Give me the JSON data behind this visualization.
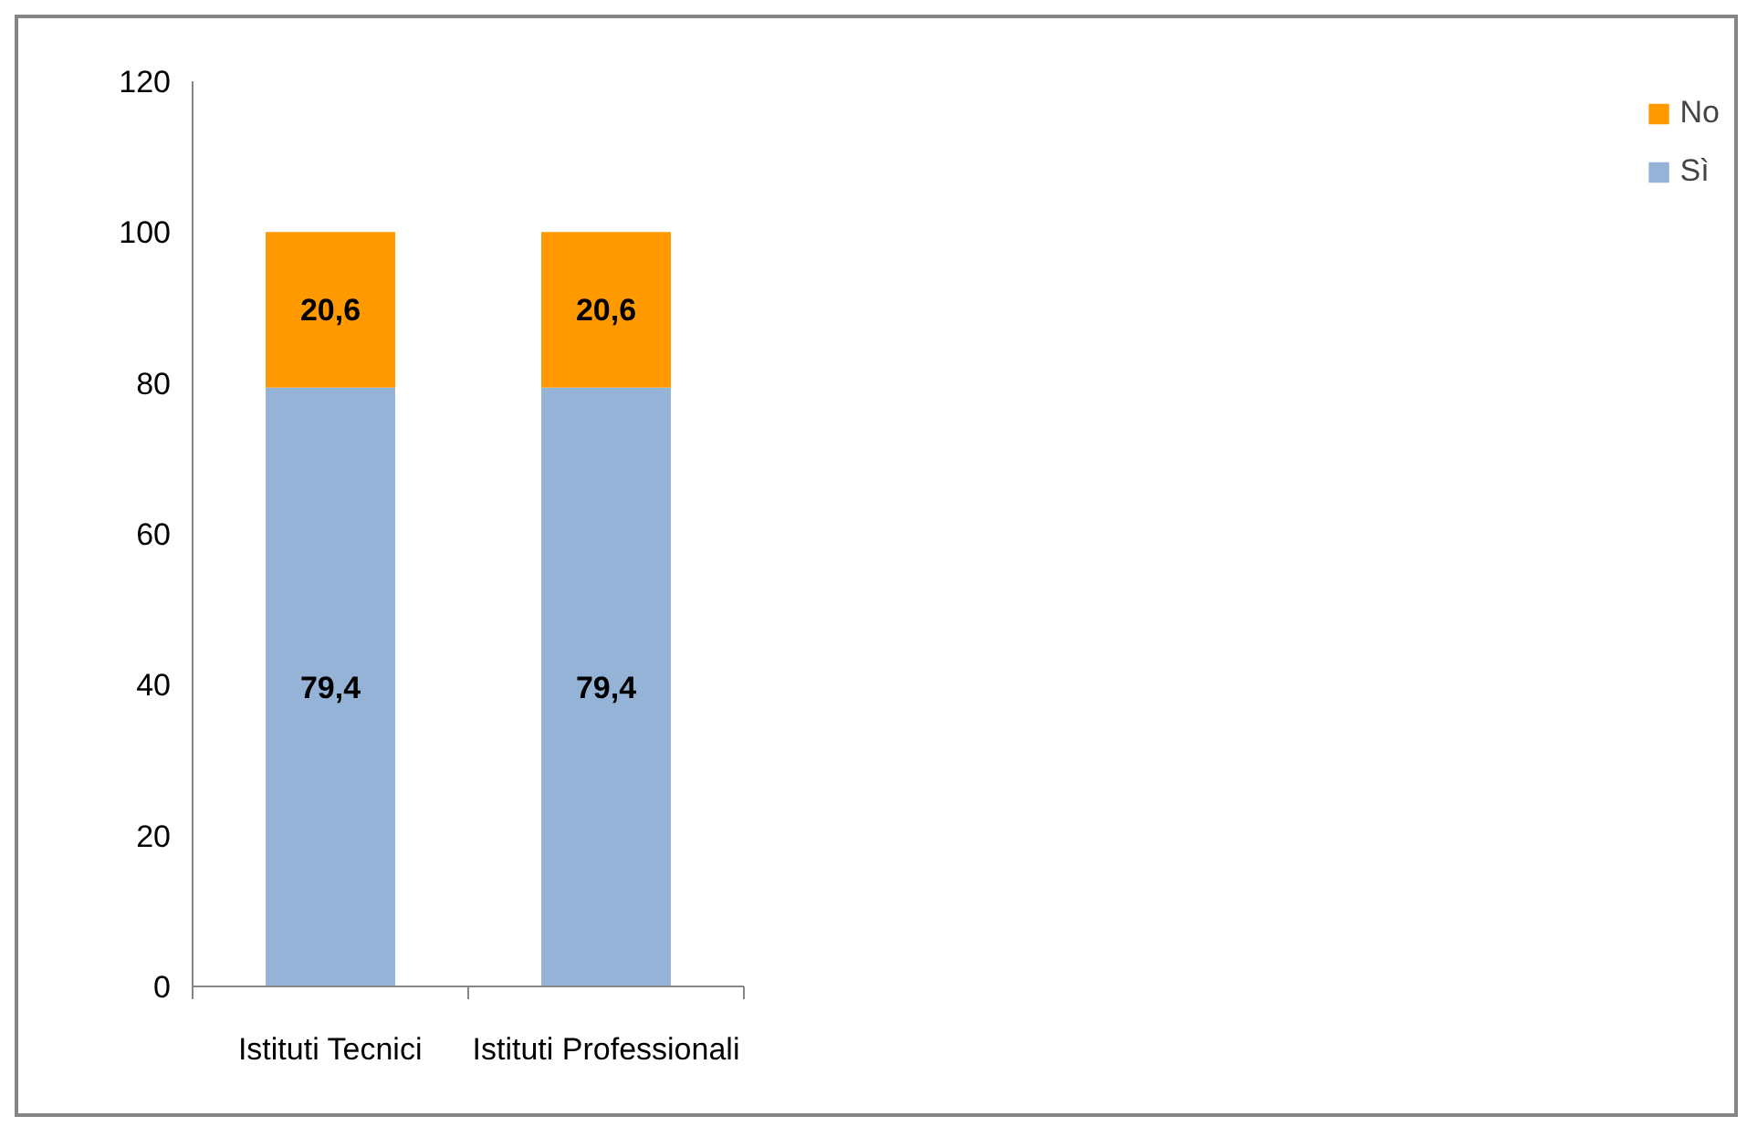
{
  "chart_data": {
    "type": "bar",
    "stacked": true,
    "categories": [
      "Istituti Tecnici",
      "Istituti Professionali"
    ],
    "series": [
      {
        "name": "Sì",
        "color": "#95b3d7",
        "values": [
          79.4,
          79.4
        ],
        "value_labels": [
          "79,4",
          "79,4"
        ]
      },
      {
        "name": "No",
        "color": "#ff9900",
        "values": [
          20.6,
          20.6
        ],
        "value_labels": [
          "20,6",
          "20,6"
        ]
      }
    ],
    "ylim": [
      0,
      120
    ],
    "yticks": [
      0,
      20,
      40,
      60,
      80,
      100,
      120
    ],
    "grid": false,
    "legend": "right"
  }
}
